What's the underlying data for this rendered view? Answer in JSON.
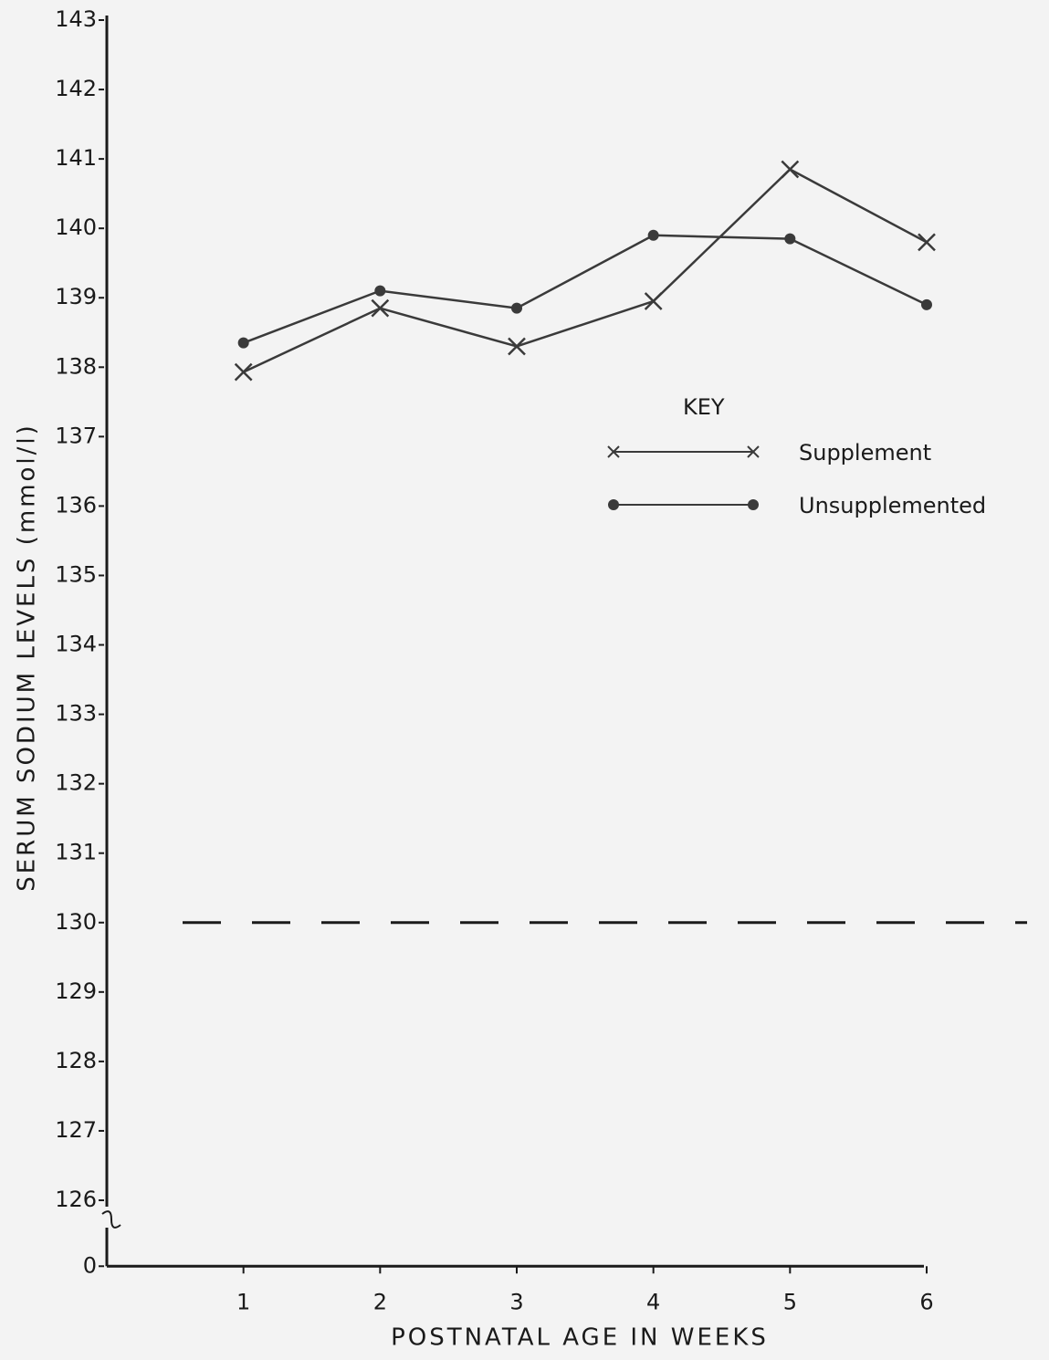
{
  "chart_data": {
    "type": "line",
    "x_label": "POSTNATAL AGE IN WEEKS",
    "y_label": "SERUM SODIUM LEVELS (mmol/l)",
    "x": [
      1,
      2,
      3,
      4,
      5,
      6
    ],
    "xlim": [
      0,
      6
    ],
    "xticks": [
      1,
      2,
      3,
      4,
      5,
      6
    ],
    "ylim": [
      126,
      143
    ],
    "yticks": [
      0,
      126,
      127,
      128,
      129,
      130,
      131,
      132,
      133,
      134,
      135,
      136,
      137,
      138,
      139,
      140,
      141,
      142,
      143
    ],
    "y_axis_break": true,
    "reference_line": {
      "value": 130,
      "style": "dashed"
    },
    "legend_title": "KEY",
    "legend_position": "upper right",
    "series": [
      {
        "name": "Supplement",
        "color": "#3a3a3a",
        "marker": "x",
        "values": [
          137.93,
          138.85,
          138.3,
          138.95,
          140.85,
          139.8
        ]
      },
      {
        "name": "Unsupplemented",
        "color": "#3a3a3a",
        "marker": "o",
        "values": [
          138.35,
          139.1,
          138.85,
          139.9,
          139.85,
          138.9
        ]
      }
    ]
  }
}
